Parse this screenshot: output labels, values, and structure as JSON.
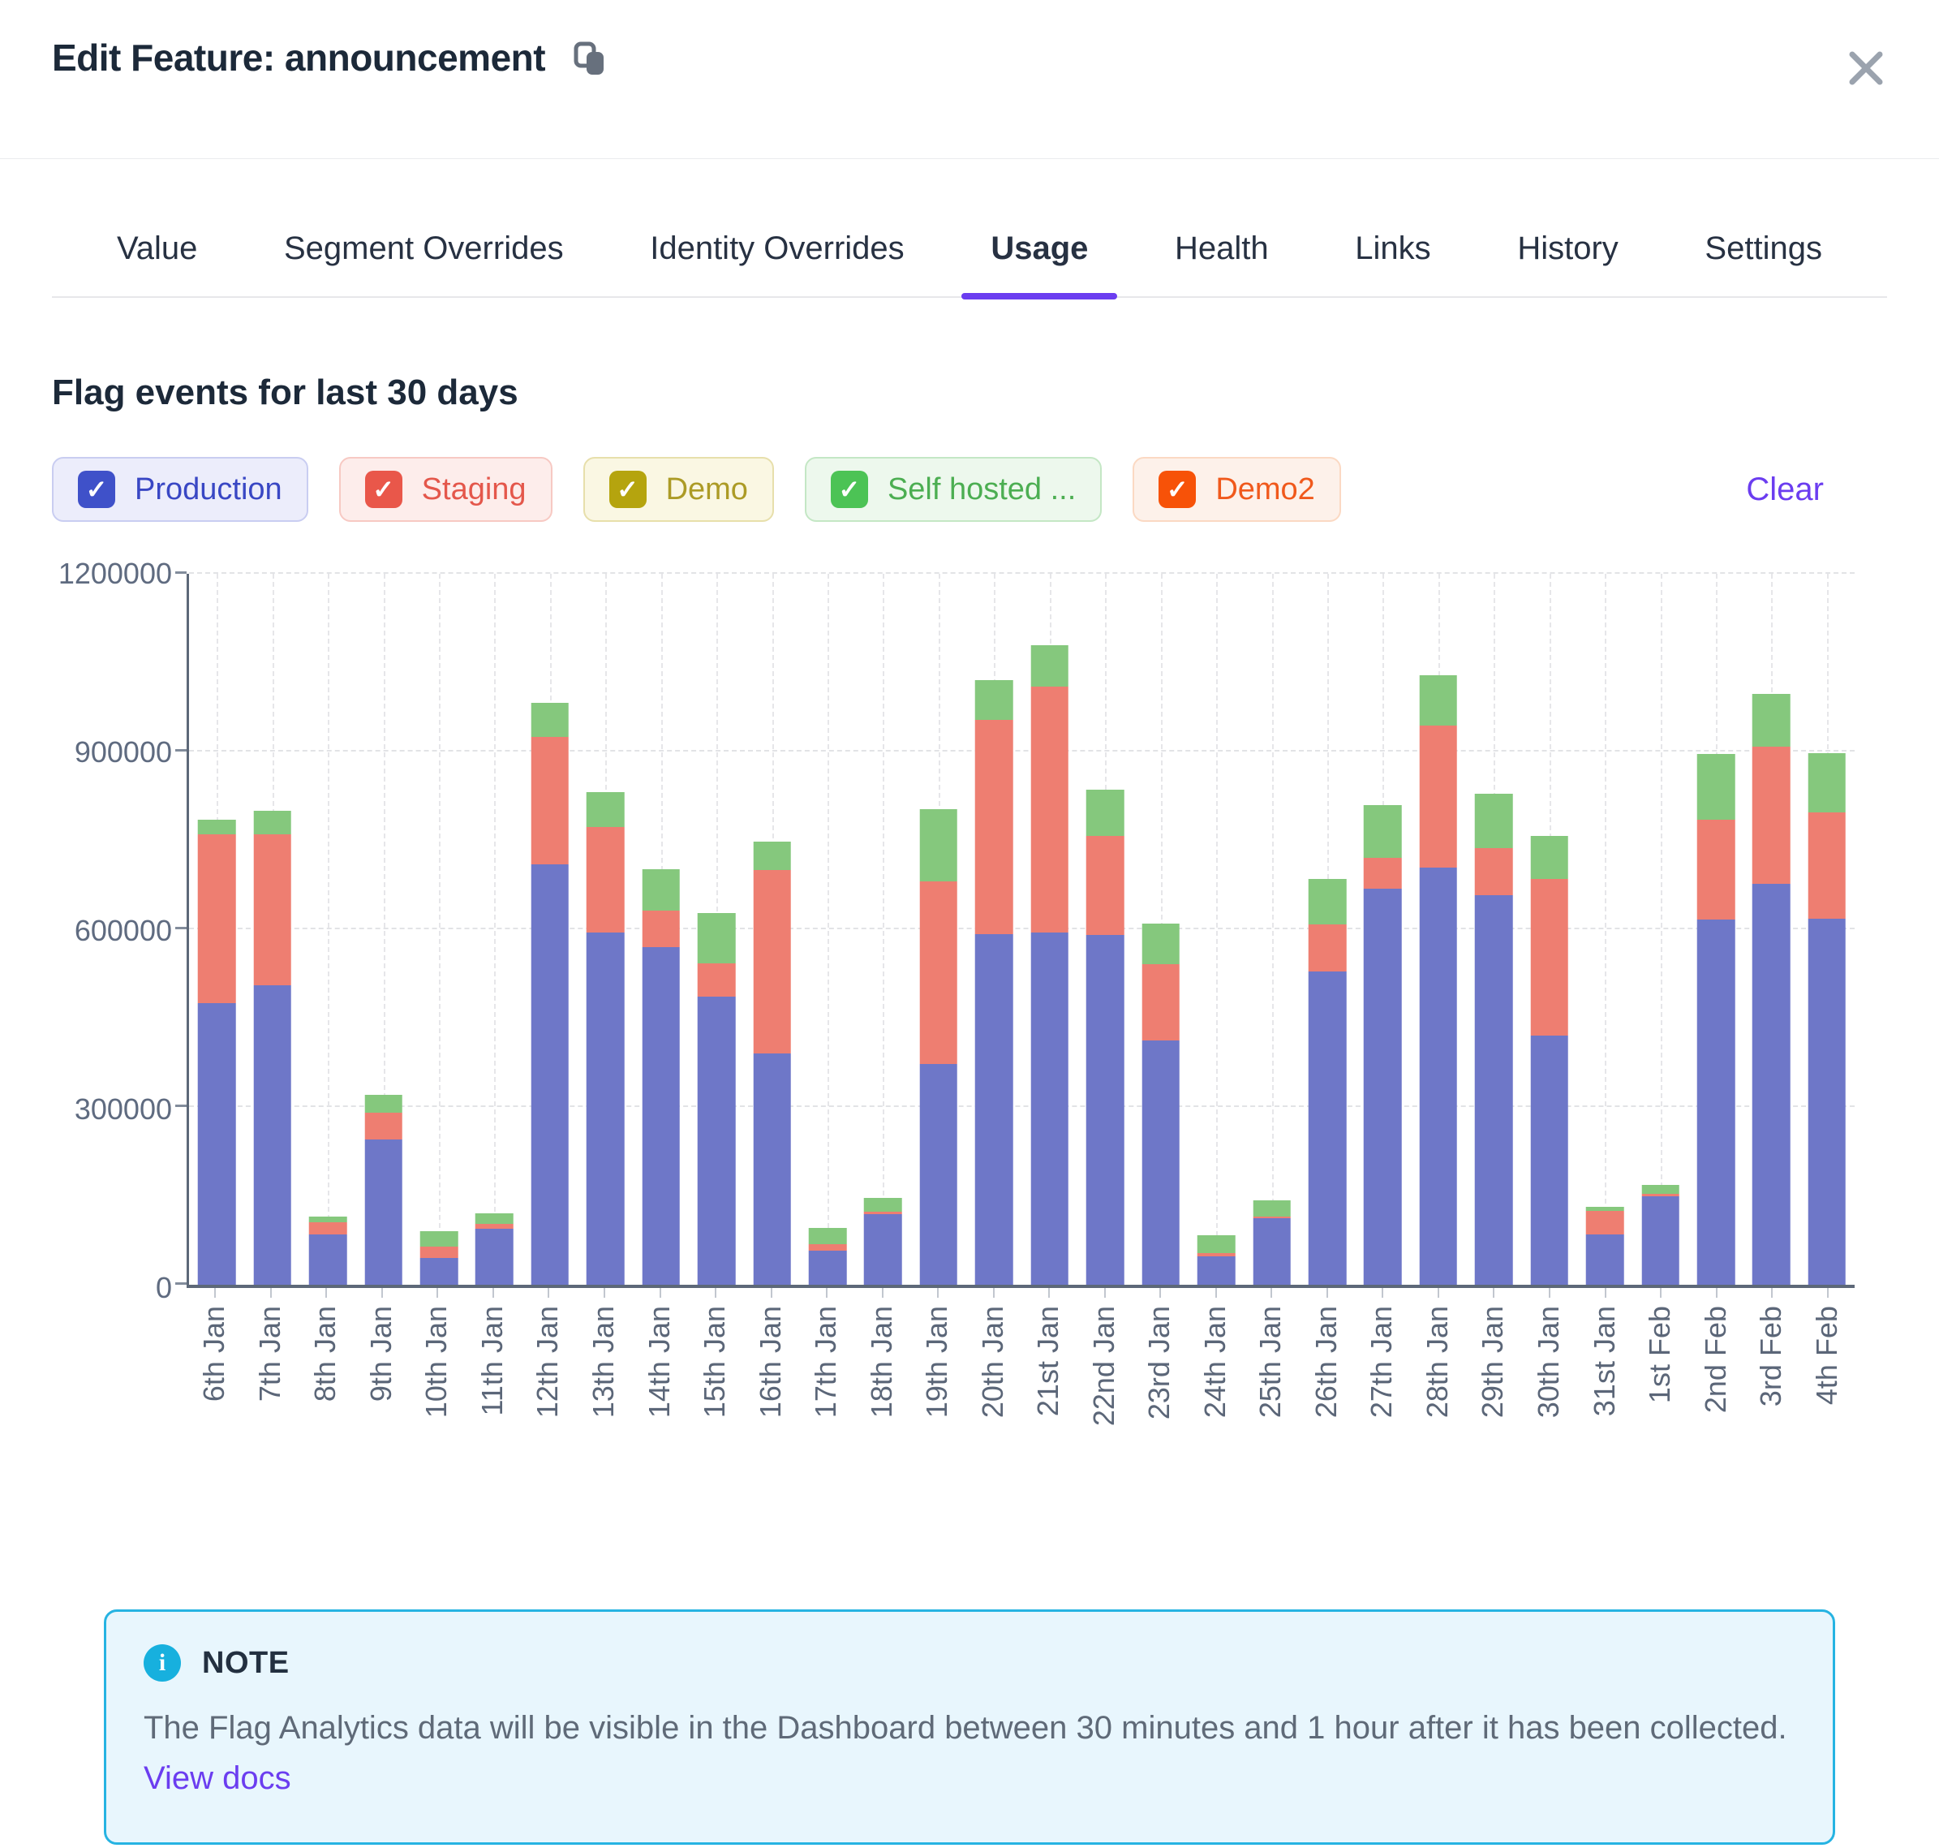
{
  "accent_color": "#6b3df0",
  "modal": {
    "title": "Edit Feature: announcement"
  },
  "tabs": [
    {
      "label": "Value",
      "active": false
    },
    {
      "label": "Segment Overrides",
      "active": false
    },
    {
      "label": "Identity Overrides",
      "active": false
    },
    {
      "label": "Usage",
      "active": true
    },
    {
      "label": "Health",
      "active": false
    },
    {
      "label": "Links",
      "active": false
    },
    {
      "label": "History",
      "active": false
    },
    {
      "label": "Settings",
      "active": false
    }
  ],
  "section": {
    "title": "Flag events for last 30 days",
    "clear_label": "Clear"
  },
  "check_glyph": "✓",
  "filters": [
    {
      "label": "Production",
      "checked": true,
      "box_color": "#3f51c9",
      "text_color": "#3947c4",
      "bg_color": "#ecedfb",
      "border_color": "#c9cdf1"
    },
    {
      "label": "Staging",
      "checked": true,
      "box_color": "#e9574a",
      "text_color": "#e4574b",
      "bg_color": "#fdedeb",
      "border_color": "#f7c9c3"
    },
    {
      "label": "Demo",
      "checked": true,
      "box_color": "#b5a40e",
      "text_color": "#ac9b26",
      "bg_color": "#faf7e3",
      "border_color": "#e7dfab"
    },
    {
      "label": "Self hosted ...",
      "checked": true,
      "box_color": "#4cc355",
      "text_color": "#4cae52",
      "bg_color": "#edf8ed",
      "border_color": "#c4e7c5"
    },
    {
      "label": "Demo2",
      "checked": true,
      "box_color": "#f75208",
      "text_color": "#f0591c",
      "bg_color": "#fdf1ea",
      "border_color": "#fbd9c3"
    }
  ],
  "chart_data": {
    "type": "bar",
    "stacked": true,
    "title": "Flag events for last 30 days",
    "xlabel": "",
    "ylabel": "",
    "ylim": [
      0,
      1200000
    ],
    "yticks": [
      0,
      300000,
      600000,
      900000,
      1200000
    ],
    "grid": true,
    "legend_position": "none",
    "categories": [
      "6th Jan",
      "7th Jan",
      "8th Jan",
      "9th Jan",
      "10th Jan",
      "11th Jan",
      "12th Jan",
      "13th Jan",
      "14th Jan",
      "15th Jan",
      "16th Jan",
      "17th Jan",
      "18th Jan",
      "19th Jan",
      "20th Jan",
      "21st Jan",
      "22nd Jan",
      "23rd Jan",
      "24th Jan",
      "25th Jan",
      "26th Jan",
      "27th Jan",
      "28th Jan",
      "29th Jan",
      "30th Jan",
      "31st Jan",
      "1st Feb",
      "2nd Feb",
      "3rd Feb",
      "4th Feb"
    ],
    "series": [
      {
        "name": "Production",
        "color": "#6e77c8",
        "values": [
          475000,
          505000,
          85000,
          245000,
          45000,
          95000,
          710000,
          595000,
          570000,
          487000,
          391000,
          57000,
          119000,
          372000,
          592000,
          594000,
          590000,
          412000,
          48000,
          112000,
          529000,
          668000,
          704000,
          658000,
          421000,
          85000,
          150000,
          617000,
          677000,
          618000
        ]
      },
      {
        "name": "Staging",
        "color": "#ee7e71",
        "values": [
          285000,
          255000,
          20000,
          45000,
          20000,
          8000,
          214000,
          178000,
          61000,
          55000,
          309000,
          11000,
          4000,
          309000,
          362000,
          416000,
          168000,
          129000,
          5000,
          3000,
          79000,
          53000,
          240000,
          79000,
          264000,
          40000,
          3000,
          168000,
          231000,
          179000
        ]
      },
      {
        "name": "Self hosted ...",
        "color": "#85c87d",
        "values": [
          25000,
          40000,
          10000,
          30000,
          25000,
          17000,
          58000,
          59000,
          71000,
          85000,
          48000,
          28000,
          23000,
          122000,
          67000,
          70000,
          77000,
          69000,
          30000,
          28000,
          77000,
          89000,
          85000,
          92000,
          73000,
          7000,
          15000,
          111000,
          89000,
          100000
        ]
      }
    ]
  },
  "note": {
    "heading": "NOTE",
    "body": "The Flag Analytics data will be visible in the Dashboard between 30 minutes and 1 hour after it has been collected.",
    "link_label": "View docs"
  }
}
